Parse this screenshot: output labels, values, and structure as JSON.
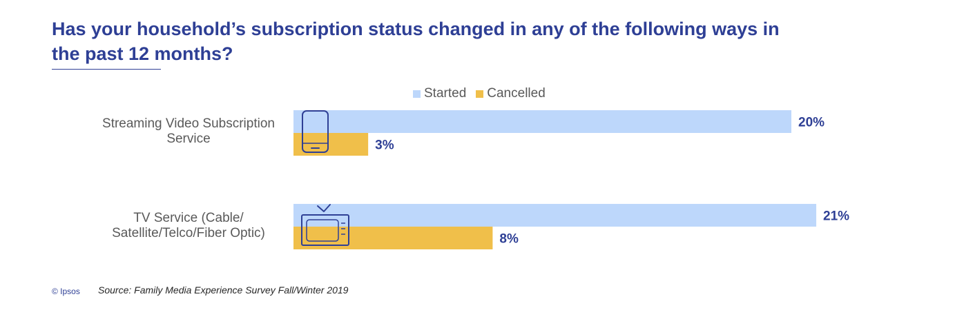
{
  "colors": {
    "title": "#2e3f95",
    "started": "#bdd7fb",
    "cancelled": "#f0bf4a",
    "value_label": "#2e3f95",
    "icon_stroke": "#2e3f95"
  },
  "chart_data": {
    "type": "bar",
    "orientation": "horizontal",
    "title": "Has your household’s subscription status changed in any of the following ways in the past 12 months?",
    "categories": [
      "Streaming Video Subscription Service",
      "TV Service (Cable/ Satellite/Telco/Fiber Optic)"
    ],
    "category_lines": [
      [
        "Streaming Video Subscription",
        "Service"
      ],
      [
        "TV Service (Cable/",
        "Satellite/Telco/Fiber Optic)"
      ]
    ],
    "series": [
      {
        "name": "Started",
        "values": [
          20,
          21
        ],
        "labels": [
          "20%",
          "21%"
        ]
      },
      {
        "name": "Cancelled",
        "values": [
          3,
          8
        ],
        "labels": [
          "3%",
          "8%"
        ]
      }
    ],
    "xlim": [
      0,
      100
    ],
    "grid": false,
    "legend_position": "top",
    "category_icons": [
      "smartphone-icon",
      "television-icon"
    ]
  },
  "footer": {
    "copyright": "© Ipsos",
    "source": "Source: Family Media Experience Survey Fall/Winter 2019"
  }
}
